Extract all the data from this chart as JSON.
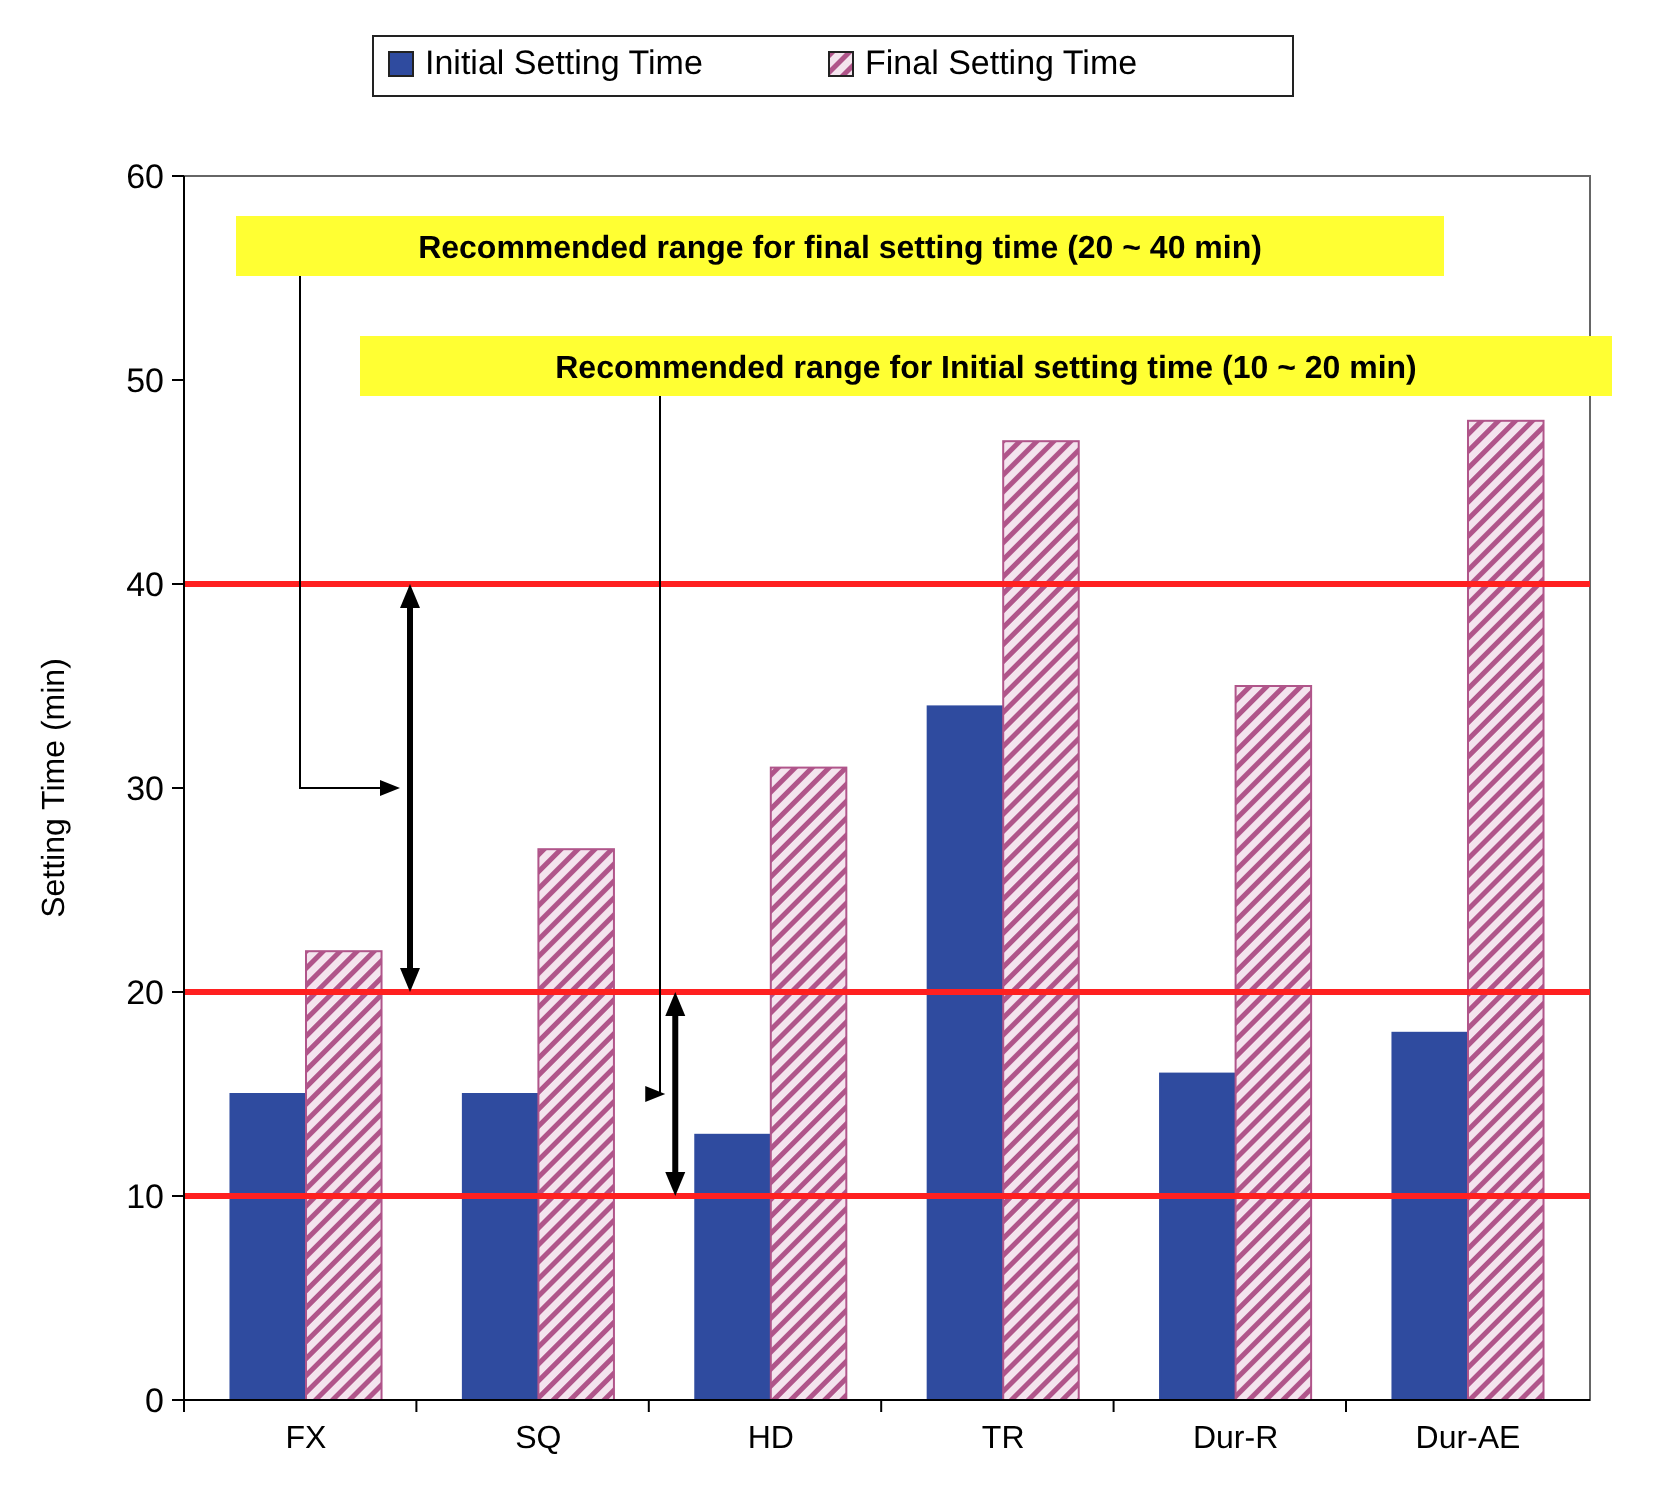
{
  "chart_data": {
    "type": "bar",
    "ylabel": "Setting Time (min)",
    "categories": [
      "FX",
      "SQ",
      "HD",
      "TR",
      "Dur-R",
      "Dur-AE"
    ],
    "series": [
      {
        "name": "Initial Setting Time",
        "color": "#2f4b9f",
        "values": [
          15,
          15,
          13,
          34,
          16,
          18
        ]
      },
      {
        "name": "Final Setting Time",
        "color": "#b0558a",
        "values": [
          22,
          27,
          31,
          47,
          35,
          48
        ]
      }
    ],
    "ylim": [
      0,
      60
    ],
    "yticks": [
      0,
      10,
      20,
      30,
      40,
      50,
      60
    ],
    "grid": false,
    "legend": "top",
    "ref_lines": [
      {
        "axis": "y",
        "value": 10,
        "color": "#ff2020"
      },
      {
        "axis": "y",
        "value": 20,
        "color": "#ff2020"
      },
      {
        "axis": "y",
        "value": 40,
        "color": "#ff2020"
      }
    ],
    "annotations": [
      "Recommended range for final setting time (20 ~ 40 min)",
      "Recommended range for Initial setting time (10 ~ 20 min)"
    ]
  }
}
